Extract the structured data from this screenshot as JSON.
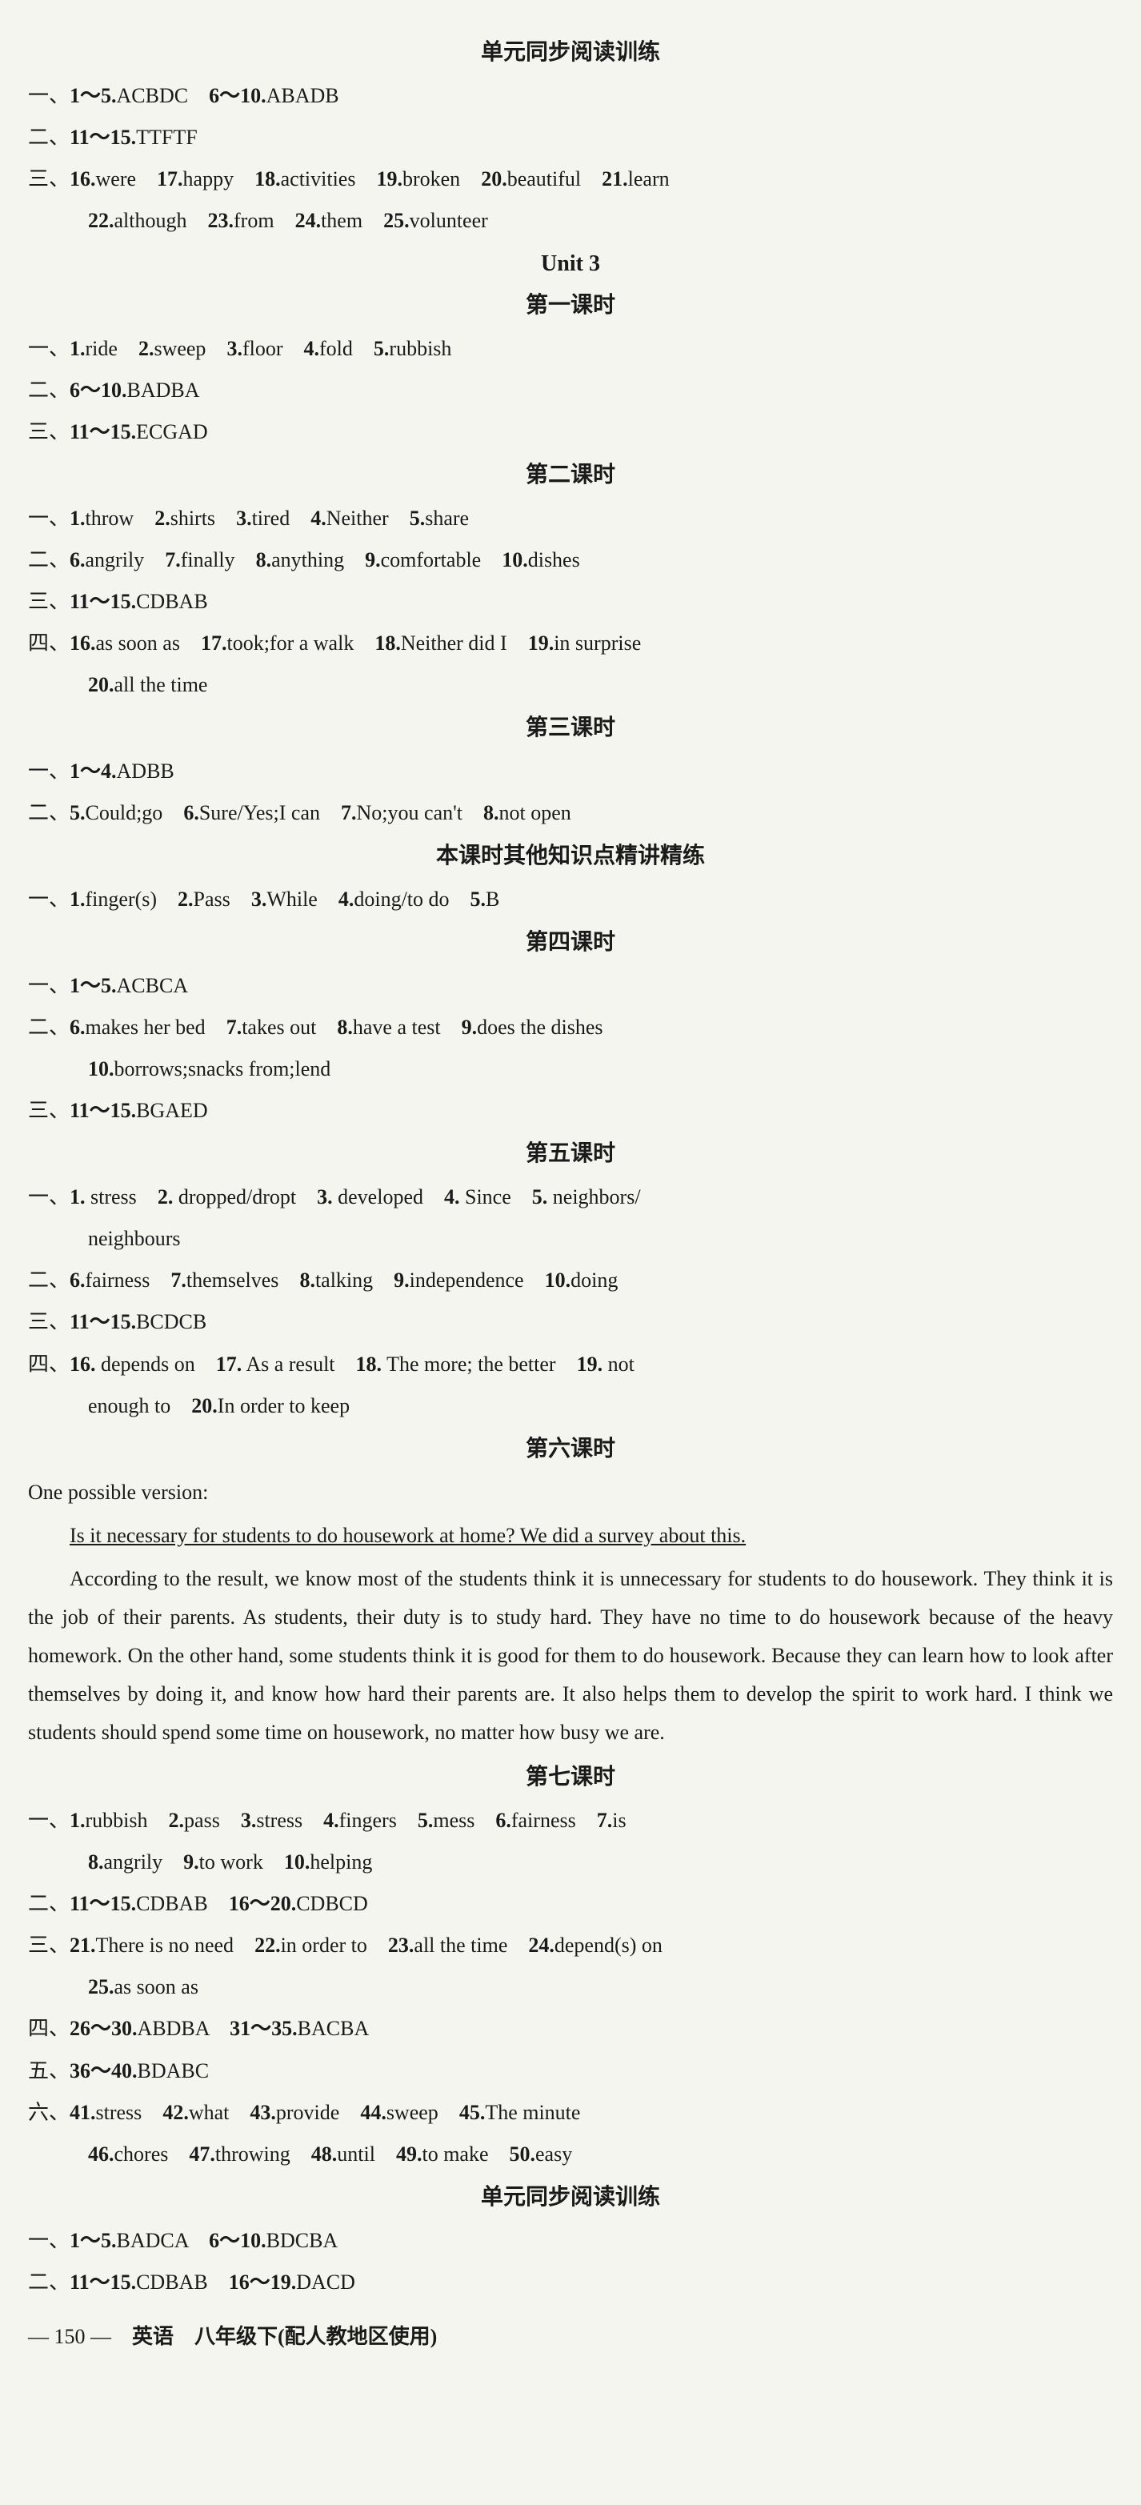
{
  "section_reading1_title": "单元同步阅读训练",
  "r1_l1_prefix": "一、",
  "r1_l1a": "1～5.",
  "r1_l1a_ans": "ACBDC",
  "r1_l1b": "6～10.",
  "r1_l1b_ans": "ABADB",
  "r1_l2_prefix": "二、",
  "r1_l2a": "11～15.",
  "r1_l2a_ans": "TTFTF",
  "r1_l3_prefix": "三、",
  "r1_16n": "16.",
  "r1_16": "were",
  "r1_17n": "17.",
  "r1_17": "happy",
  "r1_18n": "18.",
  "r1_18": "activities",
  "r1_19n": "19.",
  "r1_19": "broken",
  "r1_20n": "20.",
  "r1_20": "beautiful",
  "r1_21n": "21.",
  "r1_21": "learn",
  "r1_22n": "22.",
  "r1_22": "although",
  "r1_23n": "23.",
  "r1_23": "from",
  "r1_24n": "24.",
  "r1_24": "them",
  "r1_25n": "25.",
  "r1_25": "volunteer",
  "unit3_title": "Unit 3",
  "p1_title": "第一课时",
  "p1_l1_prefix": "一、",
  "p1_1n": "1.",
  "p1_1": "ride",
  "p1_2n": "2.",
  "p1_2": "sweep",
  "p1_3n": "3.",
  "p1_3": "floor",
  "p1_4n": "4.",
  "p1_4": "fold",
  "p1_5n": "5.",
  "p1_5": "rubbish",
  "p1_l2_prefix": "二、",
  "p1_l2a": "6～10.",
  "p1_l2a_ans": "BADBA",
  "p1_l3_prefix": "三、",
  "p1_l3a": "11～15.",
  "p1_l3a_ans": "ECGAD",
  "p2_title": "第二课时",
  "p2_l1_prefix": "一、",
  "p2_1n": "1.",
  "p2_1": "throw",
  "p2_2n": "2.",
  "p2_2": "shirts",
  "p2_3n": "3.",
  "p2_3": "tired",
  "p2_4n": "4.",
  "p2_4": "Neither",
  "p2_5n": "5.",
  "p2_5": "share",
  "p2_l2_prefix": "二、",
  "p2_6n": "6.",
  "p2_6": "angrily",
  "p2_7n": "7.",
  "p2_7": "finally",
  "p2_8n": "8.",
  "p2_8": "anything",
  "p2_9n": "9.",
  "p2_9": "comfortable",
  "p2_10n": "10.",
  "p2_10": "dishes",
  "p2_l3_prefix": "三、",
  "p2_l3a": "11～15.",
  "p2_l3a_ans": "CDBAB",
  "p2_l4_prefix": "四、",
  "p2_16n": "16.",
  "p2_16": "as soon as",
  "p2_17n": "17.",
  "p2_17": "took;for a walk",
  "p2_18n": "18.",
  "p2_18": "Neither did I",
  "p2_19n": "19.",
  "p2_19": "in surprise",
  "p2_20n": "20.",
  "p2_20": "all the time",
  "p3_title": "第三课时",
  "p3_l1_prefix": "一、",
  "p3_l1a": "1～4.",
  "p3_l1a_ans": "ADBB",
  "p3_l2_prefix": "二、",
  "p3_5n": "5.",
  "p3_5": "Could;go",
  "p3_6n": "6.",
  "p3_6": "Sure/Yes;I can",
  "p3_7n": "7.",
  "p3_7": "No;you can't",
  "p3_8n": "8.",
  "p3_8": "not open",
  "p3_extra_title": "本课时其他知识点精讲精练",
  "p3_l3_prefix": "一、",
  "p3_e1n": "1.",
  "p3_e1": "finger(s)",
  "p3_e2n": "2.",
  "p3_e2": "Pass",
  "p3_e3n": "3.",
  "p3_e3": "While",
  "p3_e4n": "4.",
  "p3_e4": "doing/to do",
  "p3_e5n": "5.",
  "p3_e5": "B",
  "p4_title": "第四课时",
  "p4_l1_prefix": "一、",
  "p4_l1a": "1～5.",
  "p4_l1a_ans": "ACBCA",
  "p4_l2_prefix": "二、",
  "p4_6n": "6.",
  "p4_6": "makes her bed",
  "p4_7n": "7.",
  "p4_7": "takes out",
  "p4_8n": "8.",
  "p4_8": "have a test",
  "p4_9n": "9.",
  "p4_9": "does the dishes",
  "p4_10n": "10.",
  "p4_10": "borrows;snacks from;lend",
  "p4_l3_prefix": "三、",
  "p4_l3a": "11～15.",
  "p4_l3a_ans": "BGAED",
  "p5_title": "第五课时",
  "p5_l1_prefix": "一、",
  "p5_1n": "1.",
  "p5_1": "stress",
  "p5_2n": "2.",
  "p5_2": "dropped/dropt",
  "p5_3n": "3.",
  "p5_3": "developed",
  "p5_4n": "4.",
  "p5_4": "Since",
  "p5_5n": "5.",
  "p5_5": "neighbors/",
  "p5_5b": "neighbours",
  "p5_l2_prefix": "二、",
  "p5_6n": "6.",
  "p5_6": "fairness",
  "p5_7n": "7.",
  "p5_7": "themselves",
  "p5_8n": "8.",
  "p5_8": "talking",
  "p5_9n": "9.",
  "p5_9": "independence",
  "p5_10n": "10.",
  "p5_10": "doing",
  "p5_l3_prefix": "三、",
  "p5_l3a": "11～15.",
  "p5_l3a_ans": "BCDCB",
  "p5_l4_prefix": "四、",
  "p5_16n": "16.",
  "p5_16": "depends on",
  "p5_17n": "17.",
  "p5_17": "As a result",
  "p5_18n": "18.",
  "p5_18": "The more; the better",
  "p5_19n": "19.",
  "p5_19": "not",
  "p5_19b": "enough to",
  "p5_20n": "20.",
  "p5_20": "In order to keep",
  "p6_title": "第六课时",
  "p6_intro": "One possible version:",
  "p6_essay_u": "Is it necessary for students to do housework at home? We did a survey about this.",
  "p6_essay_body": "According to the result, we know most of the students think it is unnecessary for students to do housework. They think it is the job of their parents. As students, their duty is to study hard. They have no time to do housework because of the heavy homework. On the other hand, some students think it is good for them to do housework. Because they can learn how to look after themselves by doing it, and know how hard their parents are. It also helps them to develop the spirit to work hard. I think we students should spend some time on housework, no matter how busy we are.",
  "p7_title": "第七课时",
  "p7_l1_prefix": "一、",
  "p7_1n": "1.",
  "p7_1": "rubbish",
  "p7_2n": "2.",
  "p7_2": "pass",
  "p7_3n": "3.",
  "p7_3": "stress",
  "p7_4n": "4.",
  "p7_4": "fingers",
  "p7_5n": "5.",
  "p7_5": "mess",
  "p7_6n": "6.",
  "p7_6": "fairness",
  "p7_7n": "7.",
  "p7_7": "is",
  "p7_8n": "8.",
  "p7_8": "angrily",
  "p7_9n": "9.",
  "p7_9": "to work",
  "p7_10n": "10.",
  "p7_10": "helping",
  "p7_l2_prefix": "二、",
  "p7_l2a": "11～15.",
  "p7_l2a_ans": "CDBAB",
  "p7_l2b": "16～20.",
  "p7_l2b_ans": "CDBCD",
  "p7_l3_prefix": "三、",
  "p7_21n": "21.",
  "p7_21": "There is no need",
  "p7_22n": "22.",
  "p7_22": "in order to",
  "p7_23n": "23.",
  "p7_23": "all the time",
  "p7_24n": "24.",
  "p7_24": "depend(s) on",
  "p7_25n": "25.",
  "p7_25": "as soon as",
  "p7_l4_prefix": "四、",
  "p7_l4a": "26～30.",
  "p7_l4a_ans": "ABDBA",
  "p7_l4b": "31～35.",
  "p7_l4b_ans": "BACBA",
  "p7_l5_prefix": "五、",
  "p7_l5a": "36～40.",
  "p7_l5a_ans": "BDABC",
  "p7_l6_prefix": "六、",
  "p7_41n": "41.",
  "p7_41": "stress",
  "p7_42n": "42.",
  "p7_42": "what",
  "p7_43n": "43.",
  "p7_43": "provide",
  "p7_44n": "44.",
  "p7_44": "sweep",
  "p7_45n": "45.",
  "p7_45": "The minute",
  "p7_46n": "46.",
  "p7_46": "chores",
  "p7_47n": "47.",
  "p7_47": "throwing",
  "p7_48n": "48.",
  "p7_48": "until",
  "p7_49n": "49.",
  "p7_49": "to make",
  "p7_50n": "50.",
  "p7_50": "easy",
  "r2_title": "单元同步阅读训练",
  "r2_l1_prefix": "一、",
  "r2_l1a": "1～5.",
  "r2_l1a_ans": "BADCA",
  "r2_l1b": "6～10.",
  "r2_l1b_ans": "BDCBA",
  "r2_l2_prefix": "二、",
  "r2_l2a": "11～15.",
  "r2_l2a_ans": "CDBAB",
  "r2_l2b": "16～19.",
  "r2_l2b_ans": "DACD",
  "footer_page": "— 150 —",
  "footer_text": "英语　八年级下(配人教地区使用)"
}
